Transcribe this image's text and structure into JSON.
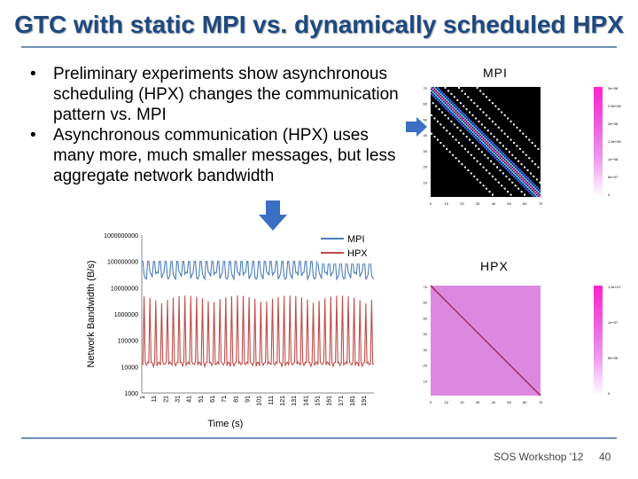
{
  "slide": {
    "title": "GTC with static MPI vs. dynamically scheduled HPX",
    "bullets": [
      "Preliminary experiments show asynchronous scheduling (HPX) changes the communication pattern vs. MPI",
      "Asynchronous communication (HPX) uses many more, much smaller messages, but less aggregate network bandwidth"
    ],
    "mpi_label": "MPI",
    "hpx_label": "HPX",
    "footer_text": "SOS Workshop '12",
    "page_number": "40"
  },
  "colors": {
    "title": "#1f497d",
    "mpi_series": "#4a7ebb",
    "hpx_series": "#be4b48",
    "arrow": "#3b6fc4"
  },
  "chart_data": [
    {
      "type": "line",
      "title": "",
      "xlabel": "Time (s)",
      "ylabel": "Network Bandwidth (B/s)",
      "yscale": "log",
      "ylim": [
        1000,
        1000000000
      ],
      "ytick_labels": [
        "1000000000",
        "100000000",
        "10000000",
        "1000000",
        "100000",
        "10000",
        "1000"
      ],
      "yticks": [
        1000000000,
        100000000,
        10000000,
        1000000,
        100000,
        10000,
        1000
      ],
      "xtick_labels": [
        "1",
        "11",
        "21",
        "31",
        "41",
        "51",
        "61",
        "71",
        "81",
        "91",
        "101",
        "111",
        "121",
        "131",
        "141",
        "151",
        "161",
        "171",
        "181",
        "191"
      ],
      "xlim": [
        1,
        200
      ],
      "legend": [
        "MPI",
        "HPX"
      ],
      "series": [
        {
          "name": "MPI",
          "low": 30000000,
          "high": 100000000,
          "period": 5
        },
        {
          "name": "HPX",
          "low": 10000,
          "high": 5000000,
          "period": 5
        }
      ]
    },
    {
      "type": "heatmap",
      "title": "MPI",
      "xtick_labels": [
        "0",
        "10",
        "20",
        "30",
        "40",
        "50",
        "60",
        "70"
      ],
      "ytick_labels": [
        "70",
        "60",
        "50",
        "40",
        "30",
        "20",
        "10"
      ],
      "colorbar_labels": [
        "3e+08",
        "2.5e+08",
        "2e+08",
        "1.5e+08",
        "1e+08",
        "5e+07",
        "0"
      ]
    },
    {
      "type": "heatmap",
      "title": "HPX",
      "xtick_labels": [
        "0",
        "10",
        "20",
        "30",
        "40",
        "50",
        "60",
        "70"
      ],
      "ytick_labels": [
        "70",
        "60",
        "50",
        "40",
        "30",
        "20",
        "10"
      ],
      "colorbar_labels": [
        "1.5e+07",
        "1e+07",
        "5e+06",
        "0"
      ]
    }
  ]
}
